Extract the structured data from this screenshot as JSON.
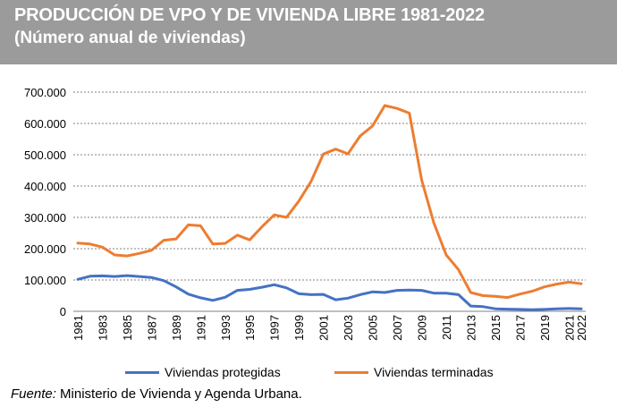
{
  "header": {
    "title": "PRODUCCIÓN DE VPO Y DE VIVIENDA LIBRE 1981-2022",
    "subtitle": "(Número anual de viviendas)"
  },
  "source": {
    "label": "Fuente:",
    "text": " Ministerio de Vivienda y Agenda Urbana."
  },
  "chart_data": {
    "type": "line",
    "title": "PRODUCCIÓN DE VPO Y DE VIVIENDA LIBRE 1981-2022",
    "subtitle": "(Número anual de viviendas)",
    "xlabel": "",
    "ylabel": "",
    "ylim": [
      0,
      700000
    ],
    "yticks": [
      0,
      100000,
      200000,
      300000,
      400000,
      500000,
      600000,
      700000
    ],
    "ytick_labels": [
      "0",
      "100.000",
      "200.000",
      "300.000",
      "400.000",
      "500.000",
      "600.000",
      "700.000"
    ],
    "grid": "horizontal dashed",
    "legend": "bottom",
    "x": [
      1981,
      1982,
      1983,
      1984,
      1985,
      1986,
      1987,
      1988,
      1989,
      1990,
      1991,
      1992,
      1993,
      1994,
      1995,
      1996,
      1997,
      1998,
      1999,
      2000,
      2001,
      2002,
      2003,
      2004,
      2005,
      2006,
      2007,
      2008,
      2009,
      2010,
      2011,
      2012,
      2013,
      2014,
      2015,
      2016,
      2017,
      2018,
      2019,
      2020,
      2021,
      2022
    ],
    "xtick_labels": [
      "1981",
      "1983",
      "1985",
      "1987",
      "1989",
      "1991",
      "1993",
      "1995",
      "1997",
      "1999",
      "2001",
      "2003",
      "2005",
      "2007",
      "2009",
      "2011",
      "2013",
      "2015",
      "2017",
      "2019",
      "2021",
      "2022"
    ],
    "series": [
      {
        "name": "Viviendas protegidas",
        "color": "#4472c4",
        "values": [
          102000,
          112000,
          113000,
          111000,
          114000,
          111000,
          108000,
          98000,
          78000,
          55000,
          43000,
          35000,
          45000,
          67000,
          70000,
          77000,
          85000,
          75000,
          56000,
          53000,
          54000,
          37000,
          42000,
          53000,
          62000,
          60000,
          67000,
          68000,
          67000,
          58000,
          58000,
          53000,
          17000,
          15000,
          8000,
          7000,
          6000,
          5000,
          6000,
          8000,
          9000,
          8000
        ]
      },
      {
        "name": "Viviendas terminadas",
        "color": "#ed7d31",
        "values": [
          218000,
          215000,
          205000,
          180000,
          177000,
          185000,
          195000,
          227000,
          231000,
          276000,
          273000,
          215000,
          217000,
          243000,
          228000,
          270000,
          308000,
          300000,
          352000,
          415000,
          502000,
          518000,
          503000,
          560000,
          592000,
          657000,
          648000,
          633000,
          420000,
          282000,
          180000,
          133000,
          60000,
          50000,
          48000,
          44000,
          55000,
          64000,
          78000,
          87000,
          93000,
          88000
        ]
      }
    ]
  }
}
